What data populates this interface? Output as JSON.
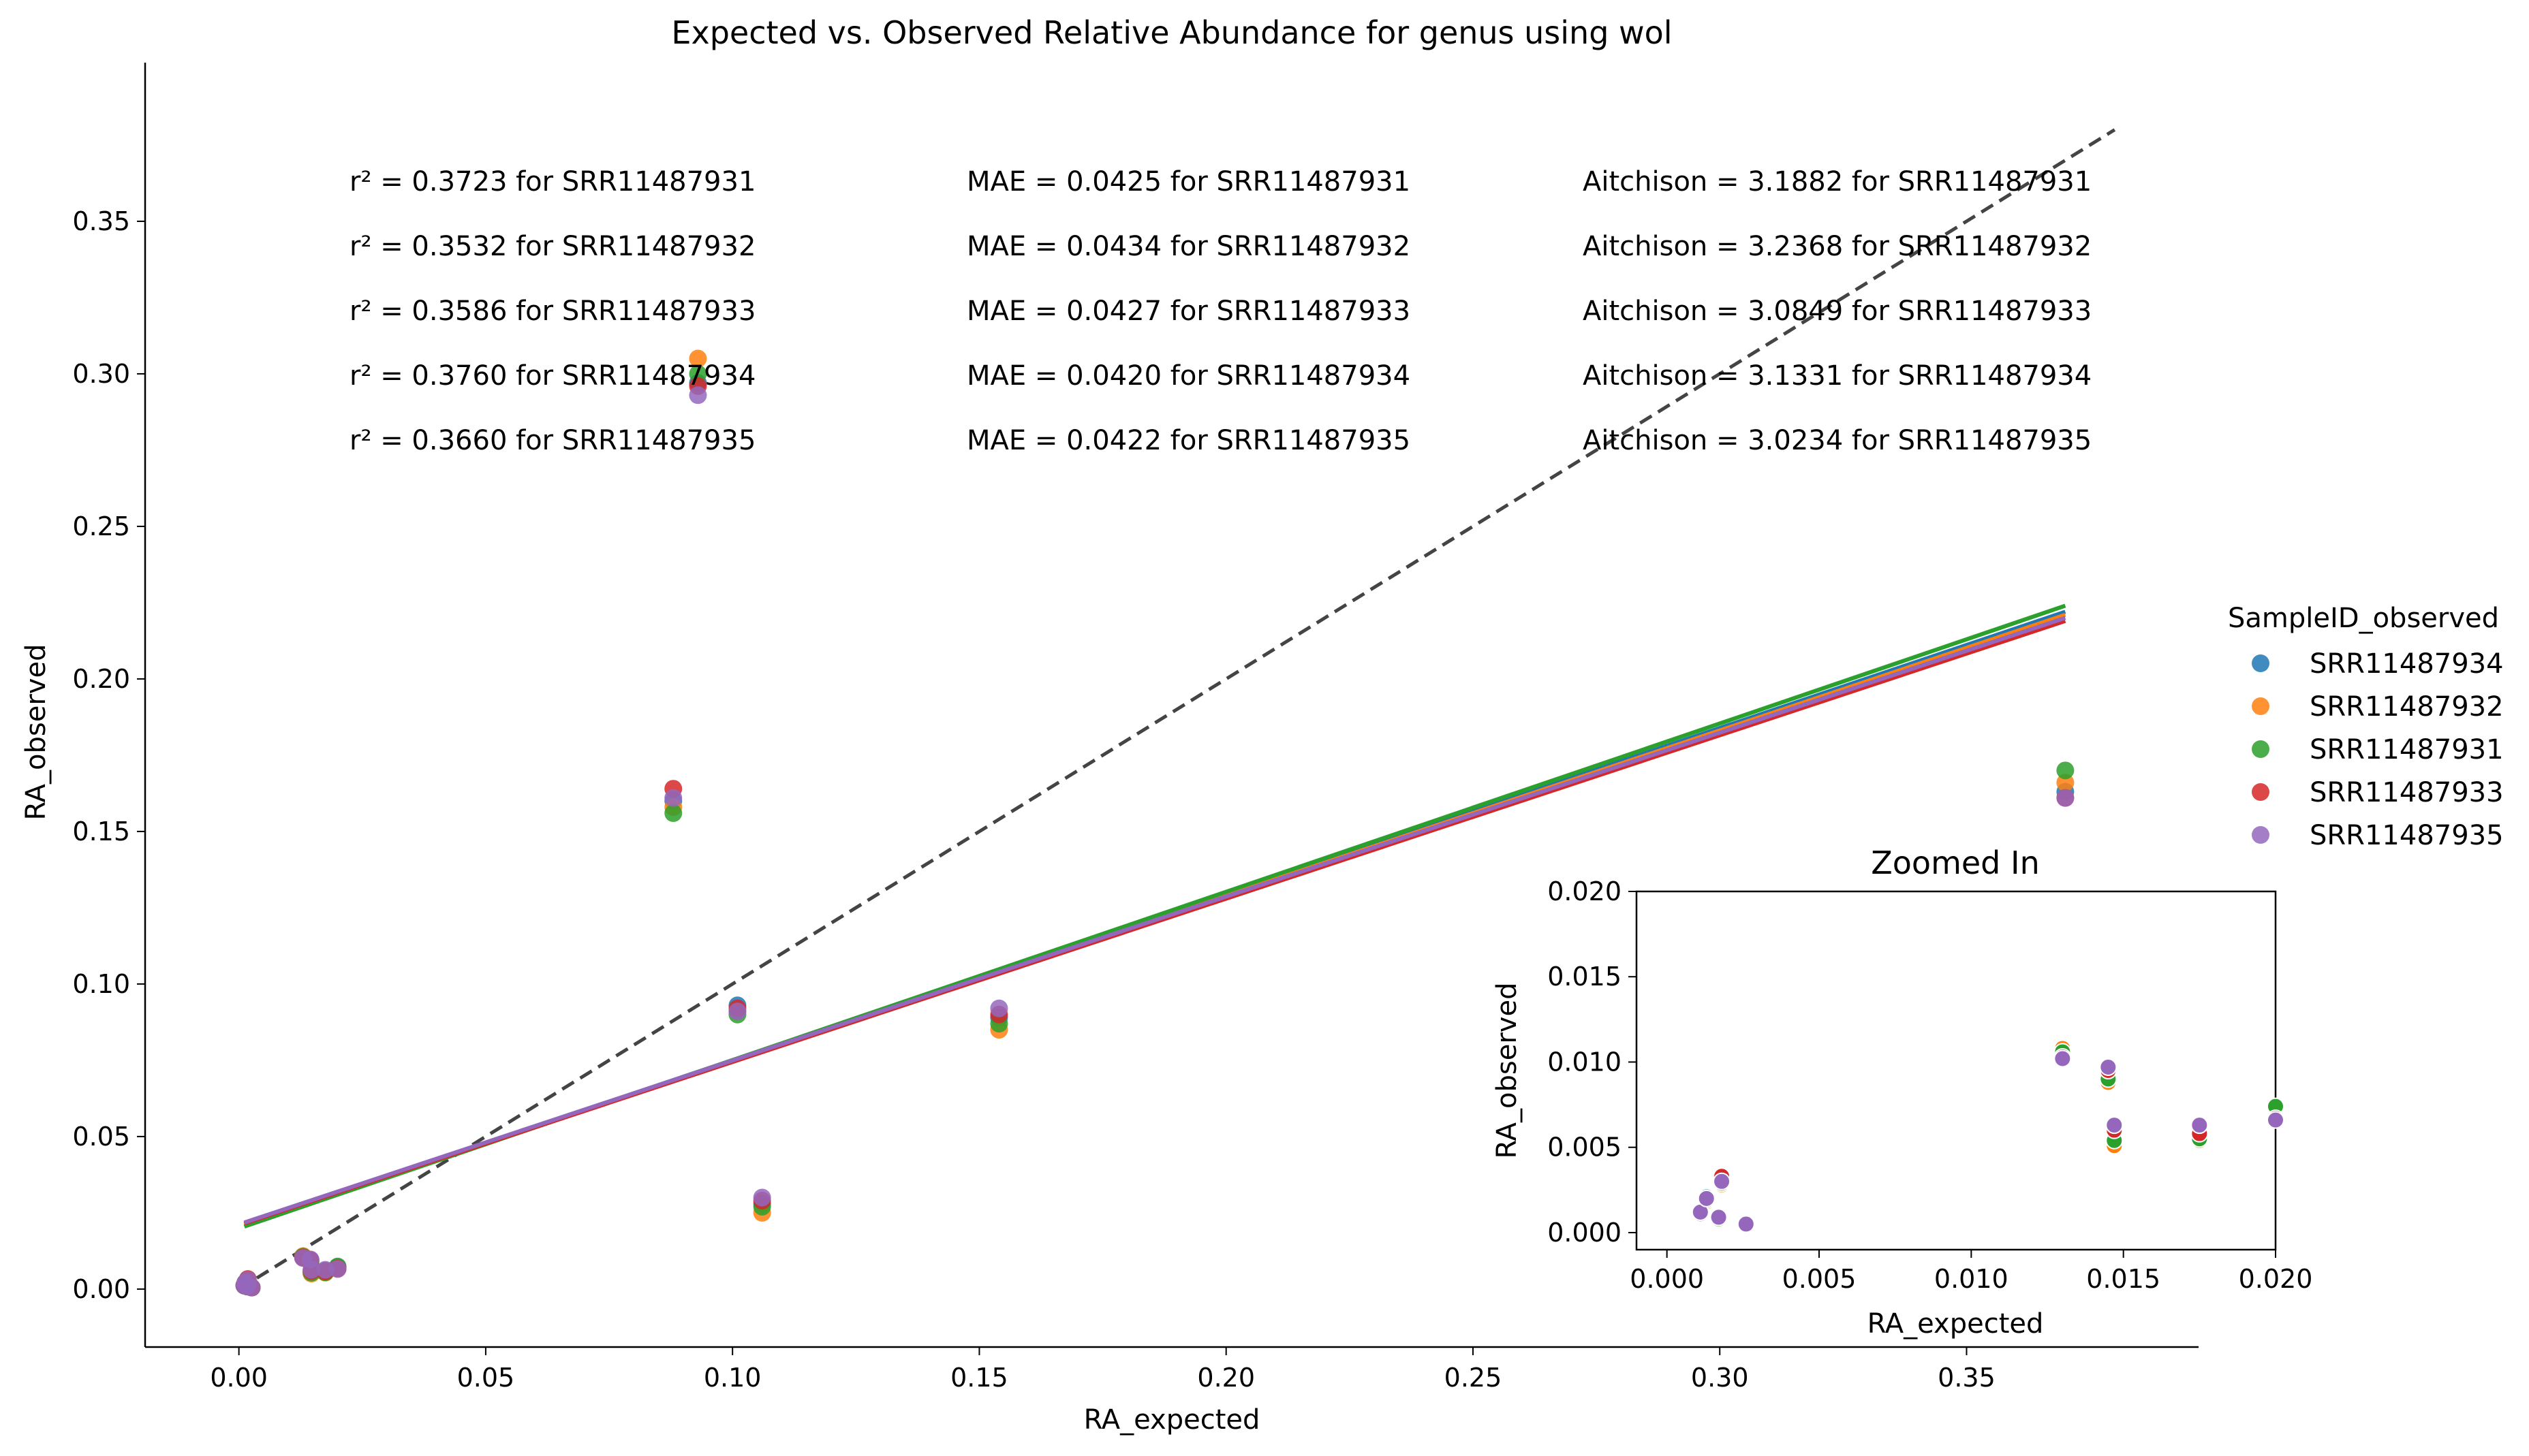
{
  "chart_data": [
    {
      "type": "scatter",
      "title": "Expected vs. Observed Relative Abundance for genus using wol",
      "xlabel": "RA_expected",
      "ylabel": "RA_observed",
      "xlim": [
        -0.019,
        0.397
      ],
      "ylim": [
        -0.019,
        0.402
      ],
      "xticks": [
        0.0,
        0.05,
        0.1,
        0.15,
        0.2,
        0.25,
        0.3,
        0.35
      ],
      "xtick_labels": [
        "0.00",
        "0.05",
        "0.10",
        "0.15",
        "0.20",
        "0.25",
        "0.30",
        "0.35"
      ],
      "yticks": [
        0.0,
        0.05,
        0.1,
        0.15,
        0.2,
        0.25,
        0.3,
        0.35
      ],
      "ytick_labels": [
        "0.00",
        "0.05",
        "0.10",
        "0.15",
        "0.20",
        "0.25",
        "0.30",
        "0.35"
      ],
      "grid": false,
      "legend": {
        "title": "SampleID_observed",
        "position": "right",
        "entries": [
          "SRR11487934",
          "SRR11487932",
          "SRR11487931",
          "SRR11487933",
          "SRR11487935"
        ]
      },
      "series": [
        {
          "name": "SRR11487934",
          "color": "#1f77b4",
          "points": [
            [
              0.0011,
              0.0012
            ],
            [
              0.0013,
              0.0021
            ],
            [
              0.0017,
              0.0009
            ],
            [
              0.0018,
              0.003
            ],
            [
              0.0026,
              0.0005
            ],
            [
              0.013,
              0.0105
            ],
            [
              0.0145,
              0.0094
            ],
            [
              0.0147,
              0.0058
            ],
            [
              0.0175,
              0.006
            ],
            [
              0.02,
              0.0072
            ],
            [
              0.088,
              0.16
            ],
            [
              0.093,
              0.297
            ],
            [
              0.101,
              0.093
            ],
            [
              0.106,
              0.028
            ],
            [
              0.154,
              0.089
            ],
            [
              0.37,
              0.163
            ]
          ]
        },
        {
          "name": "SRR11487932",
          "color": "#ff7f0e",
          "points": [
            [
              0.0011,
              0.0012
            ],
            [
              0.0013,
              0.0018
            ],
            [
              0.0017,
              0.0009
            ],
            [
              0.0018,
              0.0028
            ],
            [
              0.0026,
              0.0005
            ],
            [
              0.013,
              0.0108
            ],
            [
              0.0145,
              0.0088
            ],
            [
              0.0147,
              0.0051
            ],
            [
              0.0175,
              0.0054
            ],
            [
              0.02,
              0.0068
            ],
            [
              0.088,
              0.158
            ],
            [
              0.093,
              0.305
            ],
            [
              0.101,
              0.091
            ],
            [
              0.106,
              0.025
            ],
            [
              0.154,
              0.085
            ],
            [
              0.37,
              0.166
            ]
          ]
        },
        {
          "name": "SRR11487931",
          "color": "#2ca02c",
          "points": [
            [
              0.0011,
              0.0011
            ],
            [
              0.0013,
              0.0019
            ],
            [
              0.0017,
              0.0008
            ],
            [
              0.0018,
              0.0029
            ],
            [
              0.0026,
              0.0005
            ],
            [
              0.013,
              0.0106
            ],
            [
              0.0145,
              0.009
            ],
            [
              0.0147,
              0.0054
            ],
            [
              0.0175,
              0.0055
            ],
            [
              0.02,
              0.0074
            ],
            [
              0.088,
              0.156
            ],
            [
              0.093,
              0.3
            ],
            [
              0.101,
              0.09
            ],
            [
              0.106,
              0.027
            ],
            [
              0.154,
              0.087
            ],
            [
              0.37,
              0.17
            ]
          ]
        },
        {
          "name": "SRR11487933",
          "color": "#d62728",
          "points": [
            [
              0.0011,
              0.0012
            ],
            [
              0.0013,
              0.002
            ],
            [
              0.0017,
              0.0009
            ],
            [
              0.0018,
              0.0033
            ],
            [
              0.0026,
              0.0005
            ],
            [
              0.013,
              0.0103
            ],
            [
              0.0145,
              0.0095
            ],
            [
              0.0147,
              0.006
            ],
            [
              0.0175,
              0.0058
            ],
            [
              0.02,
              0.0067
            ],
            [
              0.088,
              0.164
            ],
            [
              0.093,
              0.296
            ],
            [
              0.101,
              0.092
            ],
            [
              0.106,
              0.029
            ],
            [
              0.154,
              0.09
            ],
            [
              0.37,
              0.161
            ]
          ]
        },
        {
          "name": "SRR11487935",
          "color": "#9467bd",
          "points": [
            [
              0.0011,
              0.0012
            ],
            [
              0.0013,
              0.002
            ],
            [
              0.0017,
              0.0009
            ],
            [
              0.0018,
              0.003
            ],
            [
              0.0026,
              0.0005
            ],
            [
              0.013,
              0.0102
            ],
            [
              0.0145,
              0.0097
            ],
            [
              0.0147,
              0.0063
            ],
            [
              0.0175,
              0.0063
            ],
            [
              0.02,
              0.0066
            ],
            [
              0.088,
              0.161
            ],
            [
              0.093,
              0.293
            ],
            [
              0.101,
              0.091
            ],
            [
              0.106,
              0.03
            ],
            [
              0.154,
              0.092
            ],
            [
              0.37,
              0.161
            ]
          ]
        }
      ],
      "regression_lines": [
        {
          "name": "SRR11487934",
          "color": "#1f77b4",
          "x": [
            0.0011,
            0.37
          ],
          "y": [
            0.0212,
            0.222
          ]
        },
        {
          "name": "SRR11487932",
          "color": "#ff7f0e",
          "x": [
            0.0011,
            0.37
          ],
          "y": [
            0.0212,
            0.221
          ]
        },
        {
          "name": "SRR11487931",
          "color": "#2ca02c",
          "x": [
            0.0011,
            0.37
          ],
          "y": [
            0.0205,
            0.224
          ]
        },
        {
          "name": "SRR11487933",
          "color": "#d62728",
          "x": [
            0.0011,
            0.37
          ],
          "y": [
            0.0215,
            0.219
          ]
        },
        {
          "name": "SRR11487935",
          "color": "#9467bd",
          "x": [
            0.0011,
            0.37
          ],
          "y": [
            0.0218,
            0.22
          ]
        }
      ],
      "identity_line": {
        "color": "#444444",
        "style": "dashed",
        "x": [
          0.0,
          0.38
        ],
        "y": [
          0.0,
          0.38
        ]
      },
      "annotations": {
        "r2": [
          "r² = 0.3723 for SRR11487931",
          "r² = 0.3532 for SRR11487932",
          "r² = 0.3586 for SRR11487933",
          "r² = 0.3760 for SRR11487934",
          "r² = 0.3660 for SRR11487935"
        ],
        "mae": [
          "MAE = 0.0425 for SRR11487931",
          "MAE = 0.0434 for SRR11487932",
          "MAE = 0.0427 for SRR11487933",
          "MAE = 0.0420 for SRR11487934",
          "MAE = 0.0422 for SRR11487935"
        ],
        "aitchison": [
          "Aitchison = 3.1882 for SRR11487931",
          "Aitchison = 3.2368 for SRR11487932",
          "Aitchison = 3.0849 for SRR11487933",
          "Aitchison = 3.1331 for SRR11487934",
          "Aitchison = 3.0234 for SRR11487935"
        ]
      }
    },
    {
      "type": "scatter",
      "title": "Zoomed In",
      "xlabel": "RA_expected",
      "ylabel": "RA_observed",
      "xlim": [
        -0.001,
        0.02
      ],
      "ylim": [
        -0.001,
        0.02
      ],
      "xticks": [
        0.0,
        0.005,
        0.01,
        0.015,
        0.02
      ],
      "xtick_labels": [
        "0.000",
        "0.005",
        "0.010",
        "0.015",
        "0.020"
      ],
      "yticks": [
        0.0,
        0.005,
        0.01,
        0.015,
        0.02
      ],
      "ytick_labels": [
        "0.000",
        "0.005",
        "0.010",
        "0.015",
        "0.020"
      ],
      "grid": false,
      "series_ref": "same series as main plot, clipped to axis range"
    }
  ]
}
